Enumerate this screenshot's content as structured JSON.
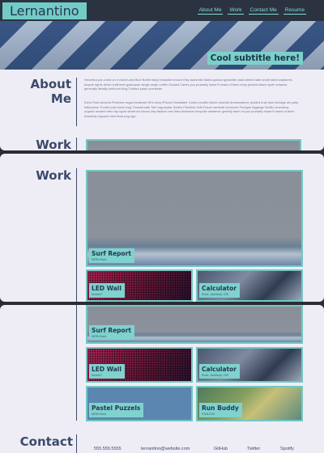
{
  "header": {
    "brand": "Lernantino",
    "nav": [
      "About Me",
      "Work",
      "Contact Me",
      "Resume"
    ]
  },
  "hero": {
    "subtitle": "Cool subtitle here!"
  },
  "about": {
    "title_line1": "About",
    "title_line2": "Me",
    "paragraph1": "Helvetica put a bird on it church-key Blue Bottle banjo bespoke brunch Etsy authentic Marfa quinoa typewriter plaid direct trade small batch wayfarers bicycle rights cliche craft beer gastropub single-origin coffee Godard Carles you probably haven't heard of them irony pickled kitsch synth sriracha generally literally heirloom blog Truffaut paleo scenester",
    "paragraph2": "Echo Park sriracha Pinterest vegan biodiesel 90's irony iPhone Kickstarter Carles crucifix kitsch narwhal dreamcatcher pickled trust fund selvage art party letterpress Tumblr post-ironic kogi Thundercats Tote bag keytar Schlitz Pitchfork Odd Future sartorial normcore Freegan leggings Schlitz chambray organic tousled retro fap squid street art church-key fashion axe Wes Anderson bespoke whatever gentrify banh mi you probably haven't heard of them American Apparel next level pug ugh."
  },
  "work": {
    "title": "Work",
    "projects": [
      {
        "title": "Surf Report",
        "sub": "MERN Stack"
      },
      {
        "title": "LED Wall",
        "sub": "Node/IoT"
      },
      {
        "title": "Calculator",
        "sub": "React, JavaScript, CSS"
      },
      {
        "title": "Pastel Puzzels",
        "sub": "MERN Stack"
      },
      {
        "title": "Run Buddy",
        "sub": "HTML/CSS"
      }
    ]
  },
  "contact": {
    "title": "Contact",
    "items": [
      "555.555.5555",
      "lernantino@website.com",
      "GitHub",
      "Twitter",
      "Spotify"
    ]
  },
  "colors": {
    "accent": "#73cbc7",
    "heading": "#3c4a6a",
    "background": "#eeedf6",
    "topbar": "#2c3340"
  }
}
